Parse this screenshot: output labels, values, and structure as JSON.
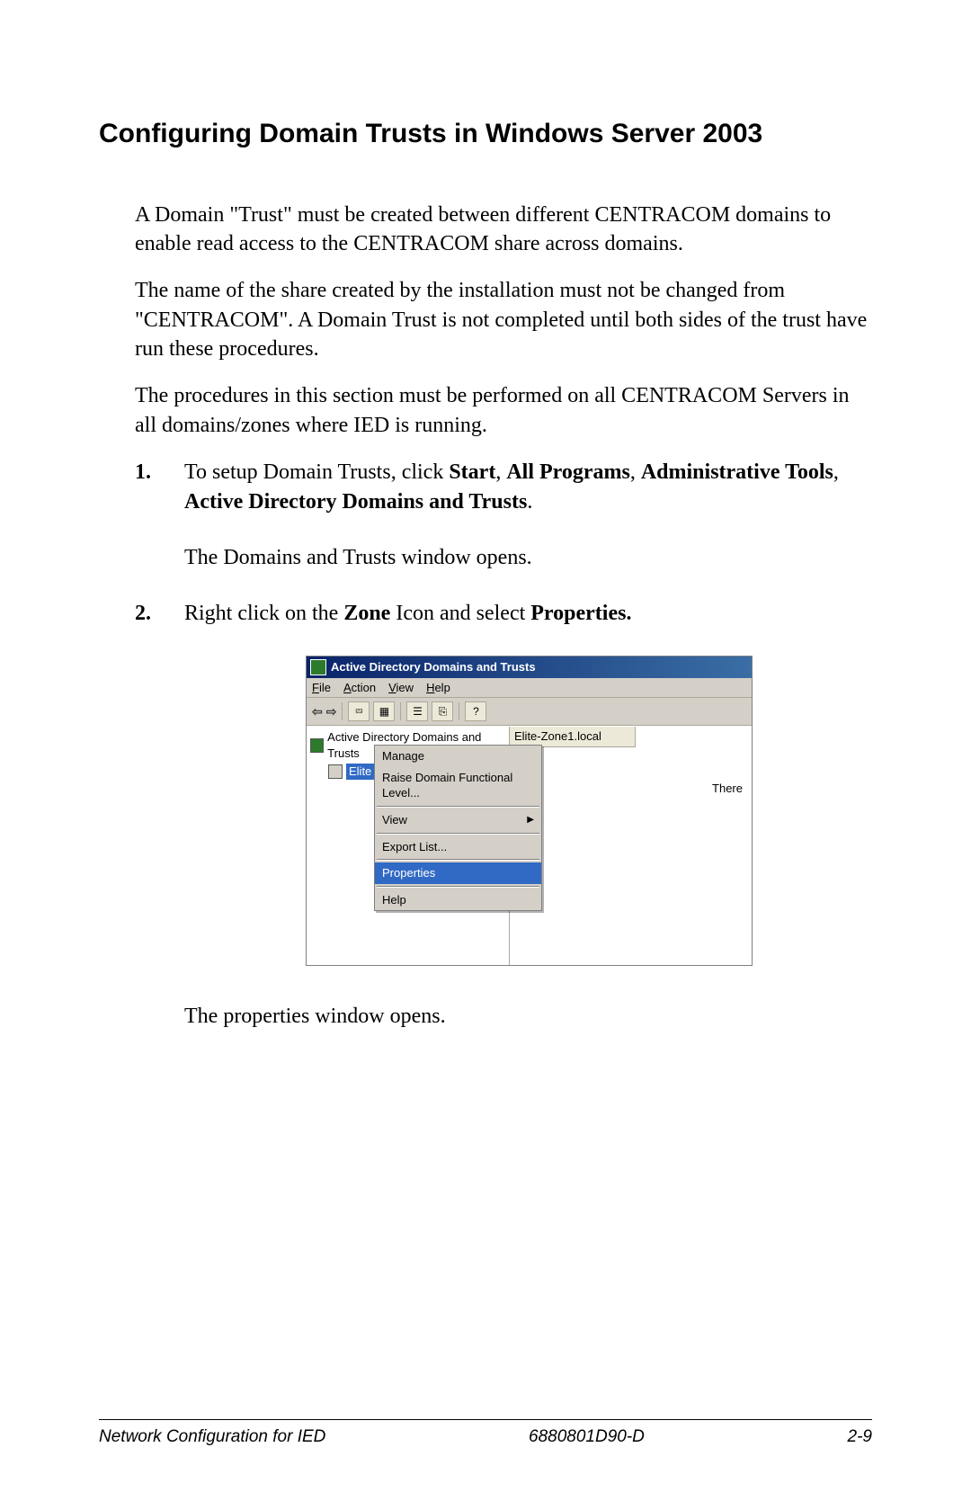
{
  "heading": "Configuring Domain Trusts in Windows Server 2003",
  "para1": "A Domain \"Trust\" must be created between different CENTRACOM domains to enable read access to the CENTRACOM share across domains.",
  "para2": "The name of the share created by the installation must not be changed from \"CENTRACOM\".   A Domain Trust is not completed until both sides of the trust have run these procedures.",
  "para3": "The procedures in this section must be performed on all CENTRACOM Servers in all domains/zones where IED is running.",
  "step1_num": "1.",
  "step1_pre": "To setup Domain Trusts, click ",
  "step1_b1": "Start",
  "step1_s1": ", ",
  "step1_b2": "All Programs",
  "step1_s2": ", ",
  "step1_b3": "Administrative Tools",
  "step1_s3": ", ",
  "step1_b4": "Active Directory Domains and Trusts",
  "step1_post": ".",
  "step1_after": "The Domains and Trusts window opens.",
  "step2_num": "2.",
  "step2_pre": "Right click on the ",
  "step2_b1": "Zone",
  "step2_mid": " Icon and select ",
  "step2_b2": "Properties.",
  "step2_after": "The properties window opens.",
  "screenshot": {
    "title": "Active Directory Domains and Trusts",
    "menubar": {
      "file": "File",
      "action": "Action",
      "view": "View",
      "help": "Help"
    },
    "toolbar_icons": [
      "⇦",
      "⇨",
      "⮹",
      "▦",
      "☰",
      "⎘",
      "?"
    ],
    "tree_root": "Active Directory Domains and Trusts",
    "tree_child": "Elite",
    "column_header": "Elite-Zone1.local",
    "right_text": "There",
    "context_menu": {
      "manage": "Manage",
      "raise": "Raise Domain Functional Level...",
      "view": "View",
      "export": "Export List...",
      "properties": "Properties",
      "help": "Help"
    }
  },
  "footer": {
    "left": "Network Configuration for IED",
    "center": "6880801D90-D",
    "right": "2-9"
  },
  "colors": {
    "titlebar_start": "#0a246a",
    "titlebar_end": "#3a6ea5",
    "win_bg": "#d4d0c8",
    "highlight": "#316ac5"
  }
}
